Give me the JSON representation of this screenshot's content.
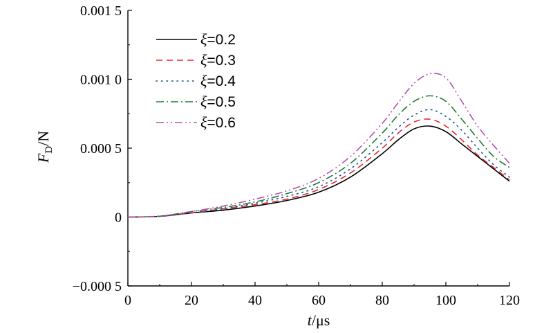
{
  "chart_data": {
    "type": "line",
    "xlabel": {
      "var": "t",
      "unit": "/μs"
    },
    "ylabel": {
      "var": "F",
      "sub": "D",
      "unit": "/N"
    },
    "xlim": [
      0,
      120
    ],
    "ylim": [
      -0.0005,
      0.0015
    ],
    "xticks": [
      0,
      20,
      40,
      60,
      80,
      100,
      120
    ],
    "xtick_labels": [
      "0",
      "20",
      "40",
      "60",
      "80",
      "100",
      "120"
    ],
    "yticks": [
      -0.0005,
      0,
      0.0005,
      0.001,
      0.0015
    ],
    "ytick_labels": [
      "−0.000 5",
      "0",
      "0.000 5",
      "0.001 0",
      "0.001 5"
    ],
    "grid": false,
    "legend_position": "top-left",
    "x": [
      0,
      10,
      20,
      30,
      40,
      50,
      60,
      70,
      80,
      85,
      90,
      95,
      100,
      105,
      110,
      115,
      120
    ],
    "series": [
      {
        "name": "ξ=0.2",
        "color": "#000000",
        "dash": "solid",
        "values": [
          0,
          5e-06,
          3e-05,
          5e-05,
          8e-05,
          0.00012,
          0.00018,
          0.00029,
          0.00046,
          0.00056,
          0.00064,
          0.00066,
          0.00062,
          0.00053,
          0.00044,
          0.00035,
          0.00026
        ]
      },
      {
        "name": "ξ=0.3",
        "color": "#e8262a",
        "dash": "dashed",
        "values": [
          0,
          5e-06,
          3e-05,
          6e-05,
          9e-05,
          0.00013,
          0.0002,
          0.00032,
          0.0005,
          0.00061,
          0.00069,
          0.00071,
          0.00066,
          0.00056,
          0.00045,
          0.00036,
          0.00027
        ]
      },
      {
        "name": "ξ=0.4",
        "color": "#1a4a8f",
        "dash": "dotted",
        "values": [
          0,
          6e-06,
          3e-05,
          6e-05,
          0.0001,
          0.00015,
          0.00022,
          0.00035,
          0.00054,
          0.00065,
          0.00074,
          0.00078,
          0.00073,
          0.00063,
          0.0005,
          0.00038,
          0.00029
        ]
      },
      {
        "name": "ξ=0.5",
        "color": "#1e7a32",
        "dash": "dashdot",
        "values": [
          0,
          6e-06,
          4e-05,
          7e-05,
          0.00011,
          0.00017,
          0.00025,
          0.00039,
          0.00061,
          0.00074,
          0.00084,
          0.00088,
          0.00084,
          0.00071,
          0.00057,
          0.00044,
          0.00036
        ]
      },
      {
        "name": "ξ=0.6",
        "color": "#b44fb0",
        "dash": "dashdotdot",
        "values": [
          0,
          7e-06,
          4e-05,
          8e-05,
          0.00013,
          0.00019,
          0.00028,
          0.00044,
          0.00068,
          0.00083,
          0.00097,
          0.00104,
          0.00101,
          0.00084,
          0.00066,
          0.00052,
          0.00039
        ]
      }
    ]
  }
}
